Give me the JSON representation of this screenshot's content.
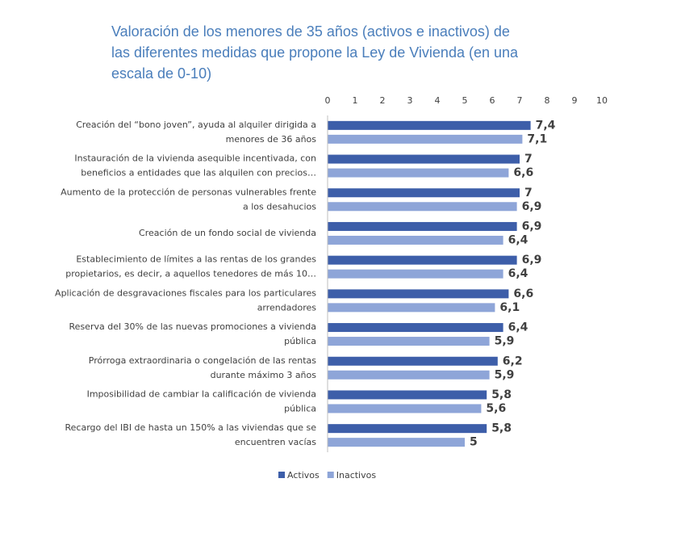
{
  "chart_data": {
    "type": "bar",
    "orientation": "horizontal",
    "title": [
      "Valoración de los menores de 35 años (activos e inactivos) de",
      "las diferentes medidas que propone la Ley de Vivienda (en una",
      "escala de 0-10)"
    ],
    "categories": [
      [
        "Creación del “bono joven”, ayuda al alquiler dirigida a",
        "menores de 36 años"
      ],
      [
        "Instauración de la vivienda asequible incentivada, con",
        "beneficios a entidades que las alquilen con precios…"
      ],
      [
        "Aumento de la protección de personas vulnerables frente",
        "a los desahucios"
      ],
      [
        "Creación de un fondo social de vivienda"
      ],
      [
        "Establecimiento de límites a las rentas de los grandes",
        "propietarios, es decir, a aquellos tenedores de más 10…"
      ],
      [
        "Aplicación de desgravaciones fiscales para los particulares",
        "arrendadores"
      ],
      [
        "Reserva del 30% de las nuevas promociones a vivienda",
        "pública"
      ],
      [
        "Prórroga extraordinaria o congelación de las rentas",
        "durante máximo 3 años"
      ],
      [
        "Imposibilidad de cambiar la calificación de vivienda",
        "pública"
      ],
      [
        "Recargo del IBI de hasta un 150% a las viviendas que se",
        "encuentren vacías"
      ]
    ],
    "series": [
      {
        "name": "Activos",
        "color": "#3d5ea9",
        "values": [
          7.4,
          7,
          7,
          6.9,
          6.9,
          6.6,
          6.4,
          6.2,
          5.8,
          5.8
        ],
        "value_labels": [
          "7,4",
          "7",
          "7",
          "6,9",
          "6,9",
          "6,6",
          "6,4",
          "6,2",
          "5,8",
          "5,8"
        ]
      },
      {
        "name": "Inactivos",
        "color": "#8ea5d8",
        "values": [
          7.1,
          6.6,
          6.9,
          6.4,
          6.4,
          6.1,
          5.9,
          5.9,
          5.6,
          5
        ],
        "value_labels": [
          "7,1",
          "6,6",
          "6,9",
          "6,4",
          "6,4",
          "6,1",
          "5,9",
          "5,9",
          "5,6",
          "5"
        ]
      }
    ],
    "xlim": [
      0,
      10
    ],
    "xticks": [
      0,
      1,
      2,
      3,
      4,
      5,
      6,
      7,
      8,
      9,
      10
    ],
    "legend": "bottom"
  }
}
